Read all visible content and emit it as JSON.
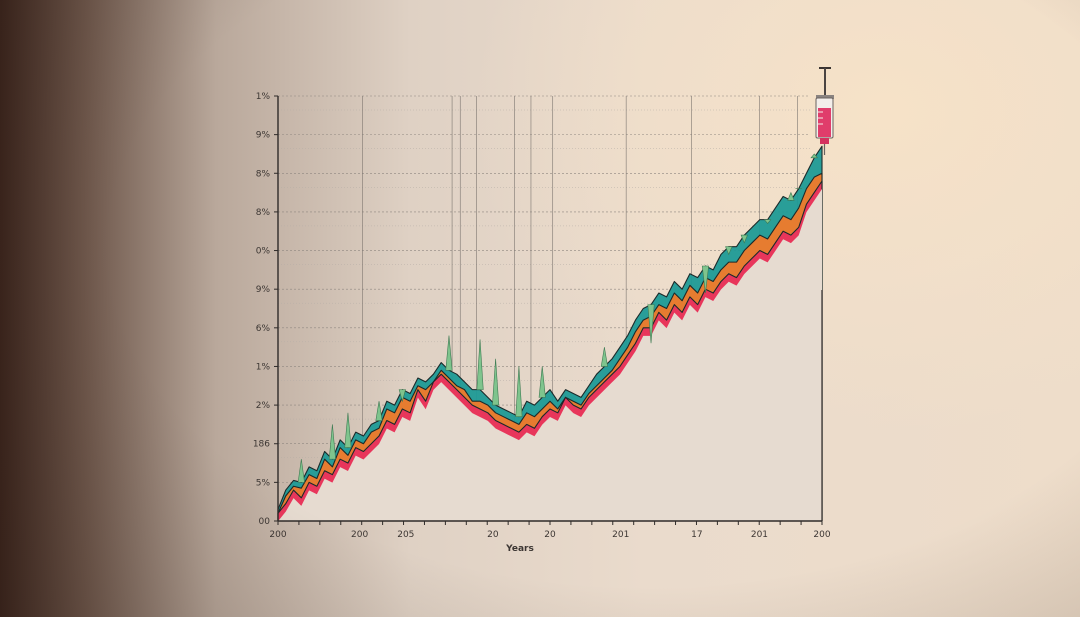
{
  "chart_data": {
    "type": "area",
    "xlabel": "Years",
    "ylabel": "",
    "title": "",
    "x_tick_labels": [
      "200",
      "200",
      "205",
      "20",
      "20",
      "201",
      "17",
      "201",
      "200"
    ],
    "y_tick_labels": [
      "00",
      "5%",
      "186",
      "2%",
      "1%",
      "6%",
      "9%",
      "0%",
      "8%",
      "8%",
      "9%",
      "1%"
    ],
    "x": [
      0,
      1,
      2,
      3,
      4,
      5,
      6,
      7,
      8,
      9,
      10,
      11,
      12,
      13,
      14,
      15,
      16,
      17,
      18,
      19,
      20,
      21,
      22,
      23,
      24,
      25,
      26,
      27,
      28,
      29,
      30,
      31,
      32,
      33,
      34,
      35,
      36,
      37,
      38,
      39,
      40,
      41,
      42,
      43,
      44,
      45,
      46,
      47,
      48,
      49,
      50,
      51,
      52,
      53,
      54,
      55,
      56,
      57,
      58,
      59,
      60,
      61,
      62,
      63,
      64,
      65,
      66,
      67,
      68,
      69,
      70
    ],
    "xlim": [
      0,
      70
    ],
    "ylim": [
      0,
      11
    ],
    "grid": true,
    "legend": "none",
    "series": [
      {
        "color": "#e8335e",
        "values": [
          0.2,
          0.45,
          0.8,
          0.6,
          1.0,
          0.9,
          1.3,
          1.2,
          1.6,
          1.5,
          1.9,
          1.8,
          2.0,
          2.2,
          2.6,
          2.5,
          2.9,
          2.8,
          3.4,
          3.1,
          3.6,
          3.8,
          3.6,
          3.4,
          3.2,
          3.0,
          2.9,
          2.8,
          2.6,
          2.5,
          2.4,
          2.3,
          2.5,
          2.4,
          2.7,
          2.9,
          2.8,
          3.2,
          3.0,
          2.9,
          3.2,
          3.4,
          3.6,
          3.8,
          4.0,
          4.3,
          4.6,
          5.0,
          5.0,
          5.4,
          5.2,
          5.6,
          5.4,
          5.8,
          5.6,
          6.0,
          5.9,
          6.2,
          6.4,
          6.3,
          6.6,
          6.8,
          7.0,
          6.9,
          7.2,
          7.5,
          7.4,
          7.6,
          8.2,
          8.5,
          8.8
        ]
      },
      {
        "color": "#f07a2a",
        "values": [
          0.2,
          0.65,
          0.9,
          0.85,
          1.2,
          1.1,
          1.6,
          1.4,
          1.9,
          1.7,
          2.1,
          2.0,
          2.3,
          2.4,
          2.9,
          2.8,
          3.2,
          3.1,
          3.5,
          3.4,
          3.6,
          3.9,
          3.7,
          3.5,
          3.4,
          3.1,
          3.1,
          3.0,
          2.8,
          2.7,
          2.6,
          2.5,
          2.8,
          2.7,
          2.9,
          3.1,
          2.9,
          3.2,
          3.1,
          3.0,
          3.3,
          3.5,
          3.7,
          3.9,
          4.2,
          4.5,
          4.9,
          5.2,
          5.3,
          5.6,
          5.5,
          5.9,
          5.7,
          6.1,
          5.9,
          6.3,
          6.2,
          6.5,
          6.7,
          6.7,
          7.0,
          7.2,
          7.4,
          7.3,
          7.6,
          7.9,
          7.8,
          8.1,
          8.6,
          8.9,
          9.0
        ]
      },
      {
        "color": "#1d9a96",
        "values": [
          0.3,
          0.8,
          1.05,
          1.0,
          1.4,
          1.3,
          1.8,
          1.6,
          2.1,
          1.9,
          2.3,
          2.2,
          2.5,
          2.6,
          3.1,
          3.0,
          3.4,
          3.3,
          3.7,
          3.6,
          3.8,
          4.1,
          3.9,
          3.8,
          3.6,
          3.4,
          3.4,
          3.2,
          3.0,
          2.9,
          2.8,
          2.7,
          3.1,
          3.0,
          3.2,
          3.4,
          3.1,
          3.4,
          3.3,
          3.2,
          3.5,
          3.8,
          4.0,
          4.2,
          4.5,
          4.8,
          5.2,
          5.5,
          5.6,
          5.9,
          5.8,
          6.2,
          6.0,
          6.4,
          6.3,
          6.6,
          6.5,
          6.9,
          7.1,
          7.1,
          7.4,
          7.6,
          7.8,
          7.8,
          8.1,
          8.4,
          8.3,
          8.6,
          9.0,
          9.4,
          9.7
        ]
      }
    ],
    "spikes": [
      {
        "x": 3,
        "value": 1.6
      },
      {
        "x": 7,
        "value": 2.5
      },
      {
        "x": 9,
        "value": 2.8
      },
      {
        "x": 13,
        "value": 3.1
      },
      {
        "x": 16,
        "value": 3.1
      },
      {
        "x": 22,
        "value": 4.8
      },
      {
        "x": 26,
        "value": 4.7
      },
      {
        "x": 28,
        "value": 4.2
      },
      {
        "x": 31,
        "value": 4.0
      },
      {
        "x": 34,
        "value": 4.0
      },
      {
        "x": 42,
        "value": 4.5
      },
      {
        "x": 48,
        "value": 4.6
      },
      {
        "x": 55,
        "value": 5.9
      },
      {
        "x": 58,
        "value": 6.9
      },
      {
        "x": 60,
        "value": 7.2
      },
      {
        "x": 63,
        "value": 7.7
      },
      {
        "x": 66,
        "value": 8.5
      },
      {
        "x": 67,
        "value": 8.6
      },
      {
        "x": 69,
        "value": 9.5
      }
    ]
  }
}
